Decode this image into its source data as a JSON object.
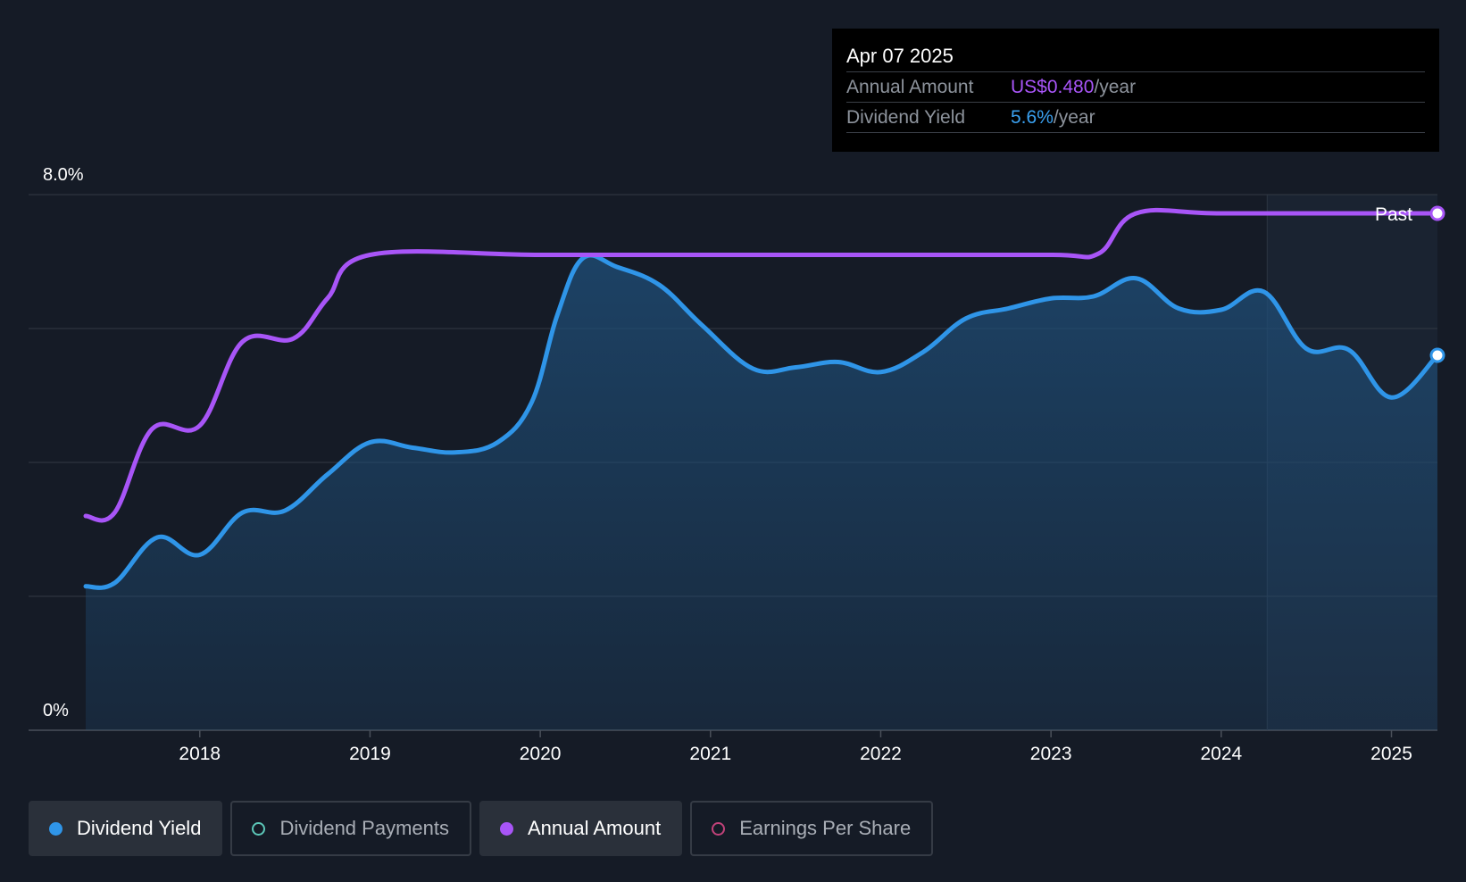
{
  "tooltip": {
    "date": "Apr 07 2025",
    "rows": [
      {
        "label": "Annual Amount",
        "value": "US$0.480",
        "unit": "/year",
        "color": "#a855f7"
      },
      {
        "label": "Dividend Yield",
        "value": "5.6%",
        "unit": "/year",
        "color": "#3aa0ef"
      }
    ]
  },
  "legend": [
    {
      "label": "Dividend Yield",
      "color": "#2f95e8",
      "active": true,
      "icon": "filled-dot-icon"
    },
    {
      "label": "Dividend Payments",
      "color": "#5cc7b8",
      "active": false,
      "icon": "hollow-dot-icon"
    },
    {
      "label": "Annual Amount",
      "color": "#a855f7",
      "active": true,
      "icon": "filled-dot-icon"
    },
    {
      "label": "Earnings Per Share",
      "color": "#c2427a",
      "active": false,
      "icon": "hollow-dot-icon"
    }
  ],
  "chart_data": {
    "type": "line",
    "title": "",
    "xlabel": "",
    "ylabel": "",
    "y_ticks": [
      "8.0%",
      "0%"
    ],
    "ylim": [
      0,
      8.0
    ],
    "xlim": [
      2017.33,
      2025.27
    ],
    "x_ticks": [
      "2018",
      "2019",
      "2020",
      "2021",
      "2022",
      "2023",
      "2024",
      "2025"
    ],
    "x_tick_values": [
      2018,
      2019,
      2020,
      2021,
      2022,
      2023,
      2024,
      2025
    ],
    "grid": true,
    "past_region_start": 2024.27,
    "past_label": "Past",
    "series": [
      {
        "name": "Dividend Yield",
        "color": "#2f95e8",
        "filled": true,
        "points": [
          [
            2017.33,
            2.15
          ],
          [
            2017.5,
            2.2
          ],
          [
            2017.75,
            2.88
          ],
          [
            2018.0,
            2.62
          ],
          [
            2018.25,
            3.25
          ],
          [
            2018.5,
            3.28
          ],
          [
            2018.75,
            3.82
          ],
          [
            2019.0,
            4.3
          ],
          [
            2019.25,
            4.22
          ],
          [
            2019.5,
            4.15
          ],
          [
            2019.75,
            4.3
          ],
          [
            2019.95,
            4.9
          ],
          [
            2020.1,
            6.2
          ],
          [
            2020.25,
            7.05
          ],
          [
            2020.45,
            6.92
          ],
          [
            2020.7,
            6.65
          ],
          [
            2020.95,
            6.05
          ],
          [
            2021.25,
            5.4
          ],
          [
            2021.5,
            5.42
          ],
          [
            2021.75,
            5.5
          ],
          [
            2022.0,
            5.35
          ],
          [
            2022.25,
            5.65
          ],
          [
            2022.5,
            6.15
          ],
          [
            2022.75,
            6.3
          ],
          [
            2023.0,
            6.45
          ],
          [
            2023.25,
            6.48
          ],
          [
            2023.5,
            6.75
          ],
          [
            2023.75,
            6.3
          ],
          [
            2024.0,
            6.28
          ],
          [
            2024.25,
            6.55
          ],
          [
            2024.5,
            5.7
          ],
          [
            2024.75,
            5.68
          ],
          [
            2025.0,
            4.97
          ],
          [
            2025.27,
            5.6
          ]
        ]
      },
      {
        "name": "Annual Amount",
        "color": "#a855f7",
        "filled": false,
        "points": [
          [
            2017.33,
            3.2
          ],
          [
            2017.5,
            3.25
          ],
          [
            2017.72,
            4.5
          ],
          [
            2018.0,
            4.55
          ],
          [
            2018.25,
            5.8
          ],
          [
            2018.55,
            5.85
          ],
          [
            2018.75,
            6.45
          ],
          [
            2019.0,
            7.1
          ],
          [
            2020.0,
            7.1
          ],
          [
            2021.0,
            7.1
          ],
          [
            2022.0,
            7.1
          ],
          [
            2023.0,
            7.1
          ],
          [
            2023.28,
            7.12
          ],
          [
            2023.5,
            7.72
          ],
          [
            2024.0,
            7.72
          ],
          [
            2025.0,
            7.72
          ],
          [
            2025.27,
            7.72
          ]
        ]
      }
    ]
  }
}
